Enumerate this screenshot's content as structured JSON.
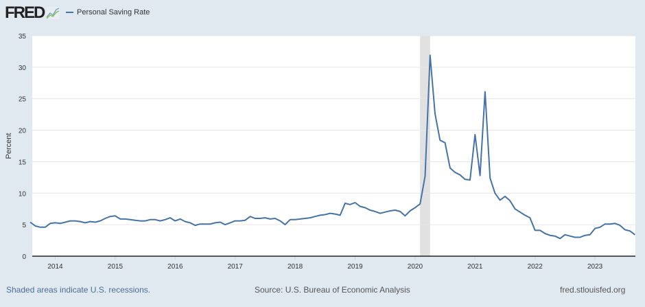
{
  "logo": {
    "text": "FRED",
    "icon": "line-chart-icon"
  },
  "chart_data": {
    "type": "line",
    "title": "",
    "xlabel": "",
    "ylabel": "Percent",
    "ylim": [
      0,
      35
    ],
    "yticks": [
      0,
      5,
      10,
      15,
      20,
      25,
      30,
      35
    ],
    "xticks": [
      "2014",
      "2015",
      "2016",
      "2017",
      "2018",
      "2019",
      "2020",
      "2021",
      "2022",
      "2023"
    ],
    "grid": true,
    "legend_placement": "top-left",
    "start_month": "2013-08",
    "end_month": "2023-09",
    "frequency": "monthly",
    "recessions": [
      {
        "start": "2020-02",
        "end": "2020-04"
      }
    ],
    "series": [
      {
        "name": "Personal Saving Rate",
        "color": "#4572a7",
        "values": [
          5.4,
          4.8,
          4.6,
          4.6,
          5.2,
          5.3,
          5.2,
          5.4,
          5.6,
          5.6,
          5.5,
          5.3,
          5.5,
          5.4,
          5.6,
          6.0,
          6.3,
          6.4,
          5.9,
          5.9,
          5.8,
          5.7,
          5.6,
          5.6,
          5.8,
          5.8,
          5.6,
          5.8,
          6.1,
          5.6,
          5.9,
          5.5,
          5.3,
          4.9,
          5.1,
          5.1,
          5.1,
          5.3,
          5.4,
          5.0,
          5.3,
          5.6,
          5.6,
          5.7,
          6.3,
          6.0,
          6.0,
          6.1,
          5.9,
          6.0,
          5.6,
          5.0,
          5.8,
          5.8,
          5.9,
          6.0,
          6.1,
          6.3,
          6.5,
          6.6,
          6.8,
          6.7,
          6.5,
          8.4,
          8.2,
          8.5,
          7.9,
          7.7,
          7.3,
          7.1,
          6.8,
          7.0,
          7.2,
          7.3,
          7.1,
          6.4,
          7.2,
          7.7,
          8.3,
          12.7,
          31.9,
          22.6,
          18.4,
          18.0,
          14.0,
          13.3,
          12.9,
          12.2,
          12.1,
          19.3,
          12.8,
          26.1,
          12.4,
          10.0,
          8.9,
          9.5,
          8.8,
          7.5,
          7.0,
          6.5,
          6.1,
          4.1,
          4.1,
          3.6,
          3.3,
          3.2,
          2.8,
          3.4,
          3.2,
          3.0,
          3.0,
          3.3,
          3.4,
          4.4,
          4.6,
          5.1,
          5.1,
          5.2,
          4.9,
          4.2,
          4.0,
          3.4
        ]
      }
    ]
  },
  "footer": {
    "recession_note": "Shaded areas indicate U.S. recessions.",
    "source": "Source: U.S. Bureau of Economic Analysis",
    "site": "fred.stlouisfed.org"
  }
}
